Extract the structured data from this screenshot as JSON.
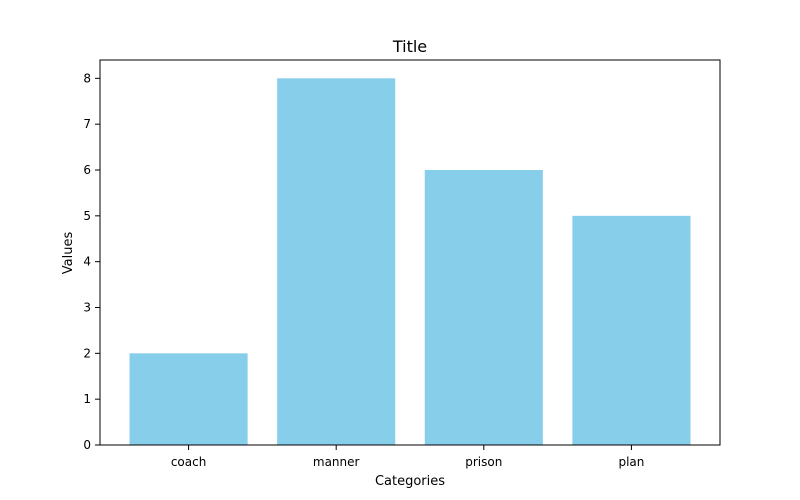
{
  "chart_data": {
    "type": "bar",
    "title": "Title",
    "xlabel": "Categories",
    "ylabel": "Values",
    "categories": [
      "coach",
      "manner",
      "prison",
      "plan"
    ],
    "values": [
      2,
      8,
      6,
      5
    ],
    "ylim": [
      0,
      8.4
    ],
    "yticks": [
      0,
      1,
      2,
      3,
      4,
      5,
      6,
      7,
      8
    ],
    "bar_color": "#87CEEB",
    "grid": false,
    "legend": "none"
  }
}
